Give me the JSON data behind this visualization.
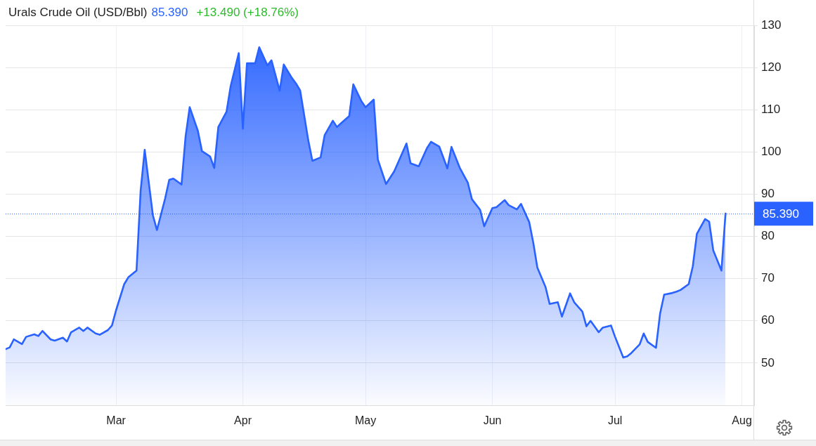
{
  "chart_data": {
    "type": "area",
    "title": "Urals Crude Oil (USD/Bbl)",
    "annotations": [
      "85.390",
      "+13.490 (+18.76%)"
    ],
    "color": "#2962ff",
    "marker": "none",
    "grid": true,
    "x": [
      "--02-02",
      "--02-03",
      "--02-04",
      "--02-06",
      "--02-07",
      "--02-09",
      "--02-10",
      "--02-11",
      "--02-13",
      "--02-14",
      "--02-16",
      "--02-17",
      "--02-18",
      "--02-20",
      "--02-21",
      "--02-22",
      "--02-24",
      "--02-25",
      "--02-27",
      "--02-28",
      "--03-01",
      "--03-03",
      "--03-04",
      "--03-06",
      "--03-07",
      "--03-08",
      "--03-10",
      "--03-11",
      "--03-13",
      "--03-14",
      "--03-15",
      "--03-17",
      "--03-18",
      "--03-19",
      "--03-21",
      "--03-22",
      "--03-24",
      "--03-25",
      "--03-26",
      "--03-28",
      "--03-29",
      "--03-31",
      "--04-01",
      "--04-02",
      "--04-04",
      "--04-05",
      "--04-07",
      "--04-08",
      "--04-10",
      "--04-11",
      "--04-13",
      "--04-14",
      "--04-15",
      "--04-17",
      "--04-18",
      "--04-20",
      "--04-21",
      "--04-23",
      "--04-24",
      "--04-25",
      "--04-27",
      "--04-28",
      "--04-30",
      "--05-01",
      "--05-03",
      "--05-04",
      "--05-06",
      "--05-08",
      "--05-09",
      "--05-11",
      "--05-12",
      "--05-14",
      "--05-16",
      "--05-17",
      "--05-19",
      "--05-21",
      "--05-22",
      "--05-24",
      "--05-26",
      "--05-27",
      "--05-29",
      "--05-30",
      "--06-01",
      "--06-02",
      "--06-04",
      "--06-05",
      "--06-07",
      "--06-08",
      "--06-10",
      "--06-11",
      "--06-12",
      "--06-14",
      "--06-15",
      "--06-17",
      "--06-18",
      "--06-20",
      "--06-21",
      "--06-23",
      "--06-24",
      "--06-25",
      "--06-27",
      "--06-28",
      "--06-30",
      "--07-01",
      "--07-03",
      "--07-04",
      "--07-05",
      "--07-07",
      "--07-08",
      "--07-09",
      "--07-11",
      "--07-12",
      "--07-13",
      "--07-15",
      "--07-16",
      "--07-17",
      "--07-19",
      "--07-20",
      "--07-21",
      "--07-23",
      "--07-24",
      "--07-25",
      "--07-27",
      "--07-28"
    ],
    "values": [
      53.3,
      53.7,
      55.6,
      54.5,
      56.2,
      56.8,
      56.4,
      57.6,
      55.6,
      55.3,
      56.0,
      55.1,
      57.3,
      58.4,
      57.6,
      58.4,
      57.0,
      56.7,
      57.8,
      58.9,
      62.5,
      68.7,
      70.3,
      71.9,
      90.7,
      100.5,
      85.0,
      81.5,
      89.0,
      93.4,
      93.7,
      92.3,
      103.7,
      110.6,
      105.0,
      100.2,
      98.9,
      96.2,
      105.9,
      109.5,
      115.5,
      123.4,
      105.5,
      121.0,
      121.0,
      124.8,
      120.5,
      121.7,
      114.5,
      120.7,
      117.5,
      116.2,
      114.6,
      102.7,
      97.9,
      98.7,
      104.0,
      107.4,
      105.9,
      106.8,
      108.5,
      116.0,
      112.0,
      110.6,
      112.4,
      98.2,
      92.4,
      95.4,
      97.6,
      102.0,
      97.3,
      96.6,
      100.9,
      102.4,
      101.3,
      96.1,
      101.2,
      96.3,
      92.7,
      88.8,
      86.3,
      82.4,
      86.7,
      86.9,
      88.6,
      87.4,
      86.4,
      87.7,
      83.4,
      78.5,
      72.6,
      68.0,
      64.0,
      64.4,
      61.0,
      66.5,
      64.4,
      62.2,
      58.7,
      60.0,
      57.3,
      58.4,
      58.9,
      56.2,
      51.3,
      51.6,
      52.4,
      54.4,
      57.0,
      55.0,
      53.6,
      61.7,
      66.2,
      66.6,
      66.9,
      67.3,
      68.7,
      72.9,
      80.6,
      84.1,
      83.5,
      76.7,
      71.9,
      85.39
    ],
    "xlim": [
      "--02-02",
      "--08-04"
    ],
    "xticks": [
      {
        "value": "--03-01",
        "label": "Mar"
      },
      {
        "value": "--04-01",
        "label": "Apr"
      },
      {
        "value": "--05-01",
        "label": "May"
      },
      {
        "value": "--06-01",
        "label": "Jun"
      },
      {
        "value": "--07-01",
        "label": "Jul"
      },
      {
        "value": "--08-01",
        "label": "Aug"
      }
    ],
    "ylim": [
      40,
      130
    ],
    "yticks": [
      50,
      60,
      70,
      80,
      90,
      100,
      110,
      120,
      130
    ],
    "ref_lines": [
      {
        "axis": "y",
        "value": 85.39,
        "label": "85.390",
        "color": "#2962ff",
        "line_style": "dotted"
      }
    ]
  }
}
